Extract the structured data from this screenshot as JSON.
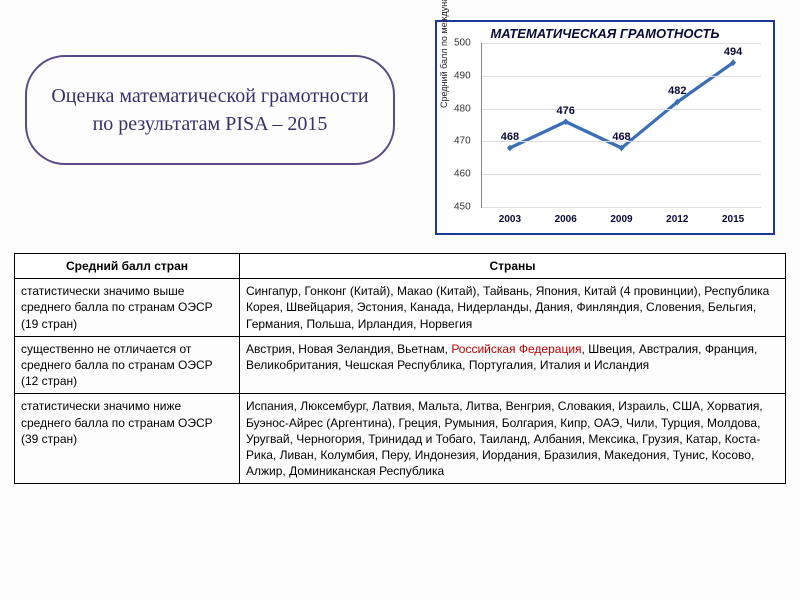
{
  "title": "Оценка математической грамотности по результатам PISA – 2015",
  "chart": {
    "title": "МАТЕМАТИЧЕСКАЯ ГРАМОТНОСТЬ",
    "type": "line",
    "y_axis_label": "Средний балл по международной шкале",
    "years": [
      "2003",
      "2006",
      "2009",
      "2012",
      "2015"
    ],
    "values": [
      468,
      476,
      468,
      482,
      494
    ],
    "ylim_min": 450,
    "ylim_max": 500,
    "ytick_step": 10,
    "line_color": "#3a6fb7",
    "marker_color": "#3a6fb7",
    "marker_size": 6,
    "line_width": 3,
    "grid_color": "#dddddd",
    "background_color": "#ffffff",
    "border_color": "#1a3a9a",
    "label_color": "#0a0a3a",
    "title_fontsize": 13,
    "tick_fontsize": 10
  },
  "table": {
    "columns": [
      "Средний балл стран",
      "Страны"
    ],
    "rows": [
      {
        "left": "статистически значимо выше среднего балла по странам ОЭСР (19 стран)",
        "right_pre": "Сингапур, Гонконг (Китай), Макао (Китай), Тайвань, Япония, Китай (4 провинции), Республика Корея, Швейцария, Эстония, Канада, Нидерланды, Дания, Финляндия, Словения, Бельгия, Германия, Польша, Ирландия, Норвегия",
        "highlight": "",
        "right_post": ""
      },
      {
        "left": "существенно не отличается от среднего балла по странам ОЭСР (12 стран)",
        "right_pre": "Австрия, Новая Зеландия, Вьетнам, ",
        "highlight": "Российская Федерация",
        "right_post": ", Швеция, Австралия, Франция, Великобритания, Чешская Республика, Португалия, Италия и Исландия"
      },
      {
        "left": "статистически значимо ниже среднего балла по странам ОЭСР (39 стран)",
        "right_pre": "Испания, Люксембург, Латвия, Мальта, Литва, Венгрия, Словакия, Израиль, США, Хорватия, Буэнос-Айрес (Аргентина), Греция, Румыния, Болгария, Кипр, ОАЭ, Чили, Турция, Молдова, Уругвай, Черногория, Тринидад и Тобаго, Таиланд, Албания, Мексика, Грузия, Катар, Коста-Рика, Ливан, Колумбия, Перу, Индонезия, Иордания, Бразилия, Македония, Тунис, Косово, Алжир, Доминиканская Республика",
        "highlight": "",
        "right_post": ""
      }
    ]
  }
}
